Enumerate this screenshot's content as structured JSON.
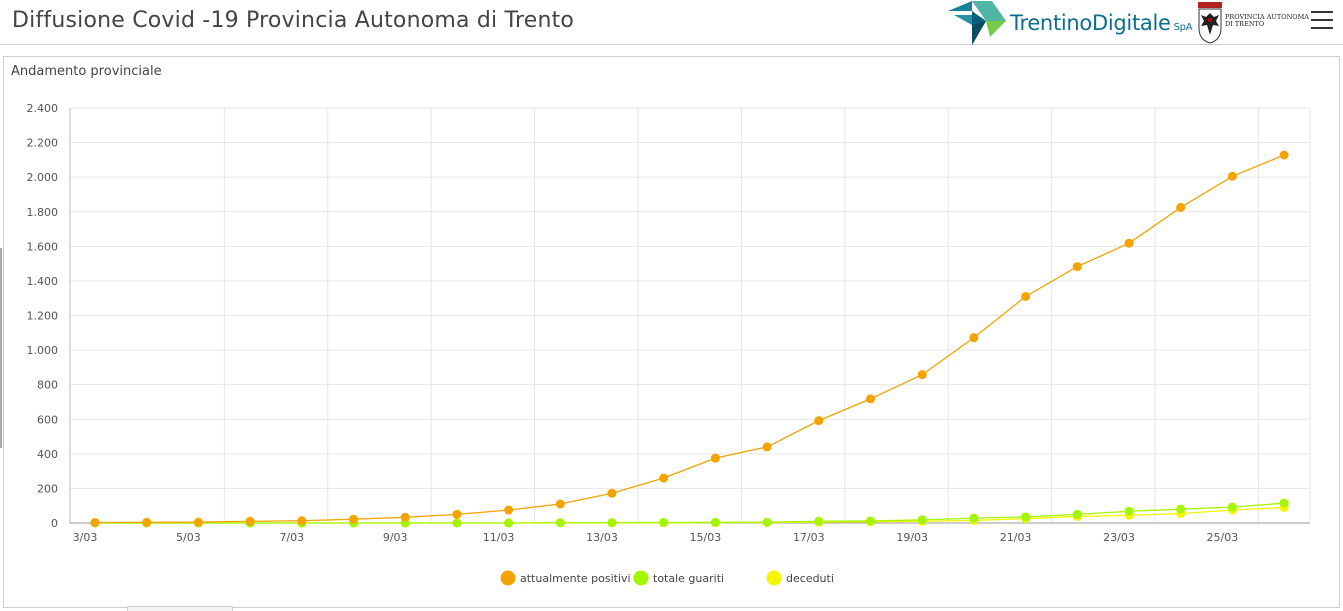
{
  "header": {
    "title": "Diffusione Covid -19 Provincia Autonoma di Trento",
    "brand_name": "TrentinoDigitale",
    "brand_suffix": "SpA",
    "province_logo_line1": "PROVINCIA AUTONOMA",
    "province_logo_line2": "DI TRENTO",
    "menu_icon": "hamburger-menu-icon"
  },
  "panel": {
    "title": "Andamento provinciale"
  },
  "colors": {
    "attualmente_positivi": "#f5a300",
    "totale_guariti": "#a3f500",
    "deceduti": "#f5f500"
  },
  "chart_data": {
    "type": "line",
    "title": "Andamento provinciale",
    "xlabel": "",
    "ylabel": "",
    "x": [
      "3/03",
      "4/03",
      "5/03",
      "6/03",
      "7/03",
      "8/03",
      "9/03",
      "10/03",
      "11/03",
      "12/03",
      "13/03",
      "14/03",
      "15/03",
      "16/03",
      "17/03",
      "18/03",
      "19/03",
      "20/03",
      "21/03",
      "22/03",
      "23/03",
      "24/03",
      "25/03",
      "26/03"
    ],
    "x_tick_labels": [
      "3/03",
      "5/03",
      "7/03",
      "9/03",
      "11/03",
      "13/03",
      "15/03",
      "17/03",
      "19/03",
      "21/03",
      "23/03",
      "25/03"
    ],
    "ylim": [
      0,
      2400
    ],
    "y_ticks": [
      0,
      200,
      400,
      600,
      800,
      1000,
      1200,
      1400,
      1600,
      1800,
      2000,
      2200,
      2400
    ],
    "y_tick_labels": [
      "0",
      "200",
      "400",
      "600",
      "800",
      "1.000",
      "1.200",
      "1.400",
      "1.600",
      "1.800",
      "2.000",
      "2.200",
      "2.400"
    ],
    "grid": true,
    "legend": "bottom",
    "series": [
      {
        "name": "attualmente positivi",
        "values": [
          3,
          4,
          5,
          10,
          13,
          22,
          33,
          50,
          75,
          110,
          172,
          260,
          375,
          440,
          592,
          718,
          858,
          1072,
          1310,
          1483,
          1618,
          1825,
          2005,
          2128
        ]
      },
      {
        "name": "totale guariti",
        "values": [
          0,
          0,
          0,
          0,
          0,
          0,
          0,
          0,
          0,
          2,
          2,
          3,
          4,
          5,
          10,
          12,
          18,
          28,
          35,
          50,
          68,
          80,
          92,
          115
        ]
      },
      {
        "name": "deceduti",
        "values": [
          0,
          0,
          0,
          0,
          0,
          0,
          0,
          0,
          0,
          1,
          1,
          1,
          2,
          3,
          5,
          7,
          10,
          15,
          25,
          38,
          45,
          55,
          75,
          90
        ]
      }
    ]
  }
}
